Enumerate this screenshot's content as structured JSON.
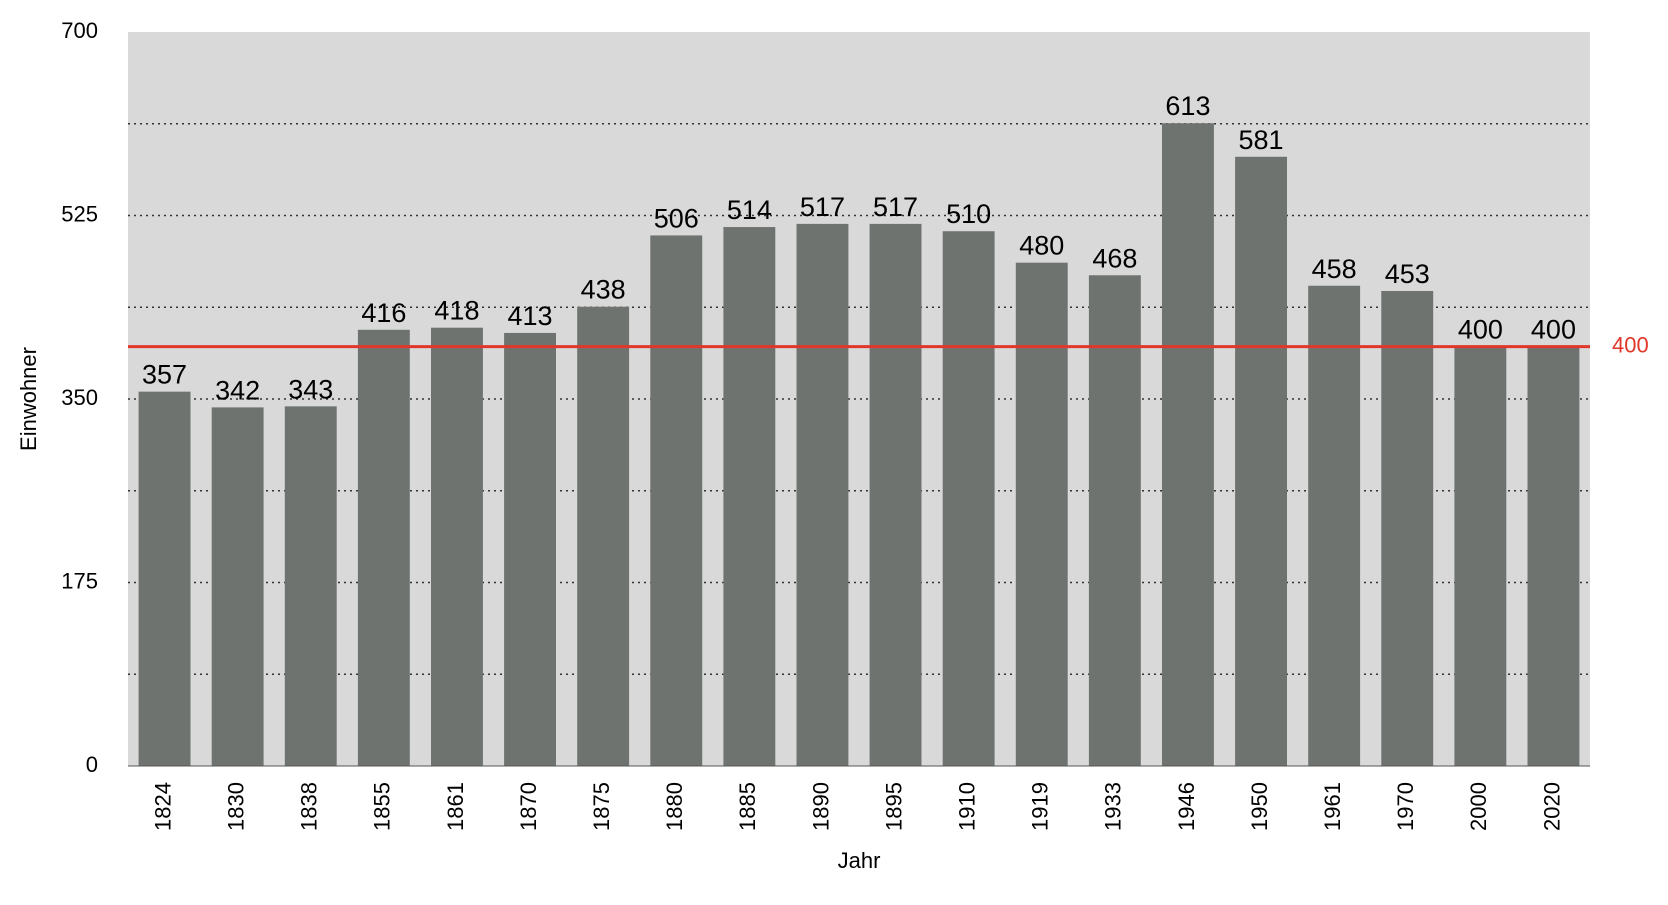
{
  "chart_data": {
    "type": "bar",
    "categories": [
      "1824",
      "1830",
      "1838",
      "1855",
      "1861",
      "1870",
      "1875",
      "1880",
      "1885",
      "1890",
      "1895",
      "1910",
      "1919",
      "1933",
      "1946",
      "1950",
      "1961",
      "1970",
      "2000",
      "2020"
    ],
    "values": [
      357,
      342,
      343,
      416,
      418,
      413,
      438,
      506,
      514,
      517,
      517,
      510,
      480,
      468,
      613,
      581,
      458,
      453,
      400,
      400
    ],
    "data_labels": [
      "357",
      "342",
      "343",
      "416",
      "418",
      "413",
      "438",
      "506",
      "514",
      "517",
      "517",
      "510",
      "480",
      "468",
      "613",
      "581",
      "458",
      "453",
      "400",
      "400"
    ],
    "title": "",
    "xlabel": "Jahr",
    "ylabel": "Einwohner",
    "ylim": [
      0,
      700
    ],
    "yticks": [
      0,
      175,
      350,
      525,
      700
    ],
    "ytick_labels": [
      "0",
      "175",
      "350",
      "525",
      "700"
    ],
    "grid": true,
    "reference_line": {
      "value": 400,
      "label": "400",
      "color": "#e0372a"
    },
    "colors": {
      "bar": "#6e7370",
      "plot_background": "#d9d9d9",
      "gridline": "#333333"
    }
  }
}
